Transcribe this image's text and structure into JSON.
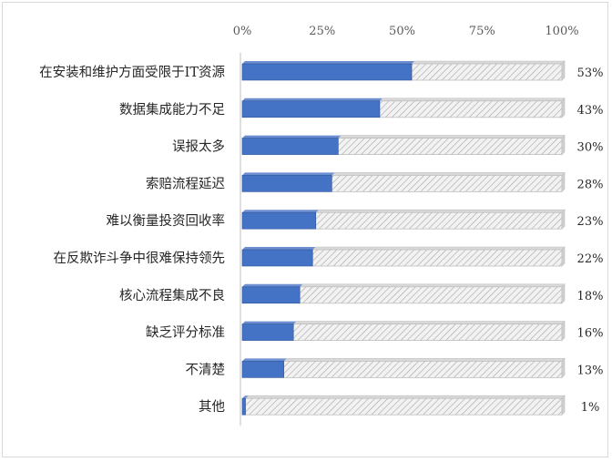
{
  "chart_data": {
    "type": "bar",
    "orientation": "horizontal",
    "stacked_percent": true,
    "x_ticks": [
      "0%",
      "25%",
      "50%",
      "75%",
      "100%"
    ],
    "xlim": [
      0,
      100
    ],
    "axis_position": "top",
    "grid": false,
    "legend": "none",
    "categories": [
      "在安装和维护方面受限于IT资源",
      "数据集成能力不足",
      "误报太多",
      "索赔流程延迟",
      "难以衡量投资回收率",
      "在反欺诈斗争中很难保持领先",
      "核心流程集成不良",
      "缺乏评分标准",
      "不清楚",
      "其他"
    ],
    "values": [
      53,
      43,
      30,
      28,
      23,
      22,
      18,
      16,
      13,
      1
    ],
    "value_labels": [
      "53%",
      "43%",
      "30%",
      "28%",
      "23%",
      "22%",
      "18%",
      "16%",
      "13%",
      "1%"
    ],
    "colors": {
      "bar": "#4472c4",
      "bar_dark": "#2f5597",
      "remainder_fill": "#f2f2f2",
      "remainder_hatch": "#a6a6a6"
    }
  }
}
